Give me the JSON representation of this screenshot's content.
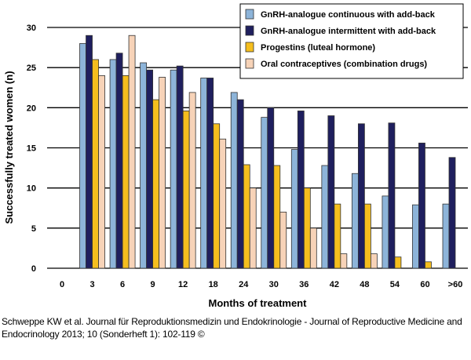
{
  "chart_data": {
    "type": "bar",
    "xlabel": "Months of treatment",
    "ylabel": "Successfully treated women (n)",
    "ylim": [
      0,
      30
    ],
    "yticks": [
      0,
      5,
      10,
      15,
      20,
      25,
      30
    ],
    "grid": true,
    "legend_placement": "top-right",
    "categories": [
      "0",
      "3",
      "6",
      "9",
      "12",
      "18",
      "24",
      "30",
      "36",
      "42",
      "48",
      "54",
      "60",
      ">60"
    ],
    "series": [
      {
        "name": "GnRH-analogue continuous with add-back",
        "color": "#8db4d9",
        "values": [
          0,
          28,
          26,
          25.6,
          24.7,
          23.7,
          21.9,
          18.8,
          14.8,
          12.8,
          11.8,
          9,
          7.9,
          8
        ]
      },
      {
        "name": "GnRH-analogue intermittent with add-back",
        "color": "#1f1f5e",
        "values": [
          0,
          29,
          26.8,
          24.7,
          25.2,
          23.7,
          21,
          20,
          19.6,
          19,
          18,
          18.1,
          15.6,
          13.8
        ]
      },
      {
        "name": "Progestins (luteal hormone)",
        "color": "#f5be1e",
        "values": [
          0,
          26,
          24,
          21,
          19.6,
          18,
          12.9,
          12.8,
          10,
          8,
          8,
          1.4,
          0.8,
          0
        ]
      },
      {
        "name": "Oral contraceptives (combination drugs)",
        "color": "#f7d3b8",
        "values": [
          0,
          24,
          29,
          23.8,
          21.9,
          16.1,
          10,
          7,
          5,
          1.8,
          1.8,
          0,
          0,
          0
        ]
      }
    ]
  },
  "caption": "Schweppe KW et al. Journal für Reproduktionsmedizin und Endokrinologie - Journal of Reproductive Medicine and Endocrinology 2013; 10 (Sonderheft 1): 102-119 ©"
}
